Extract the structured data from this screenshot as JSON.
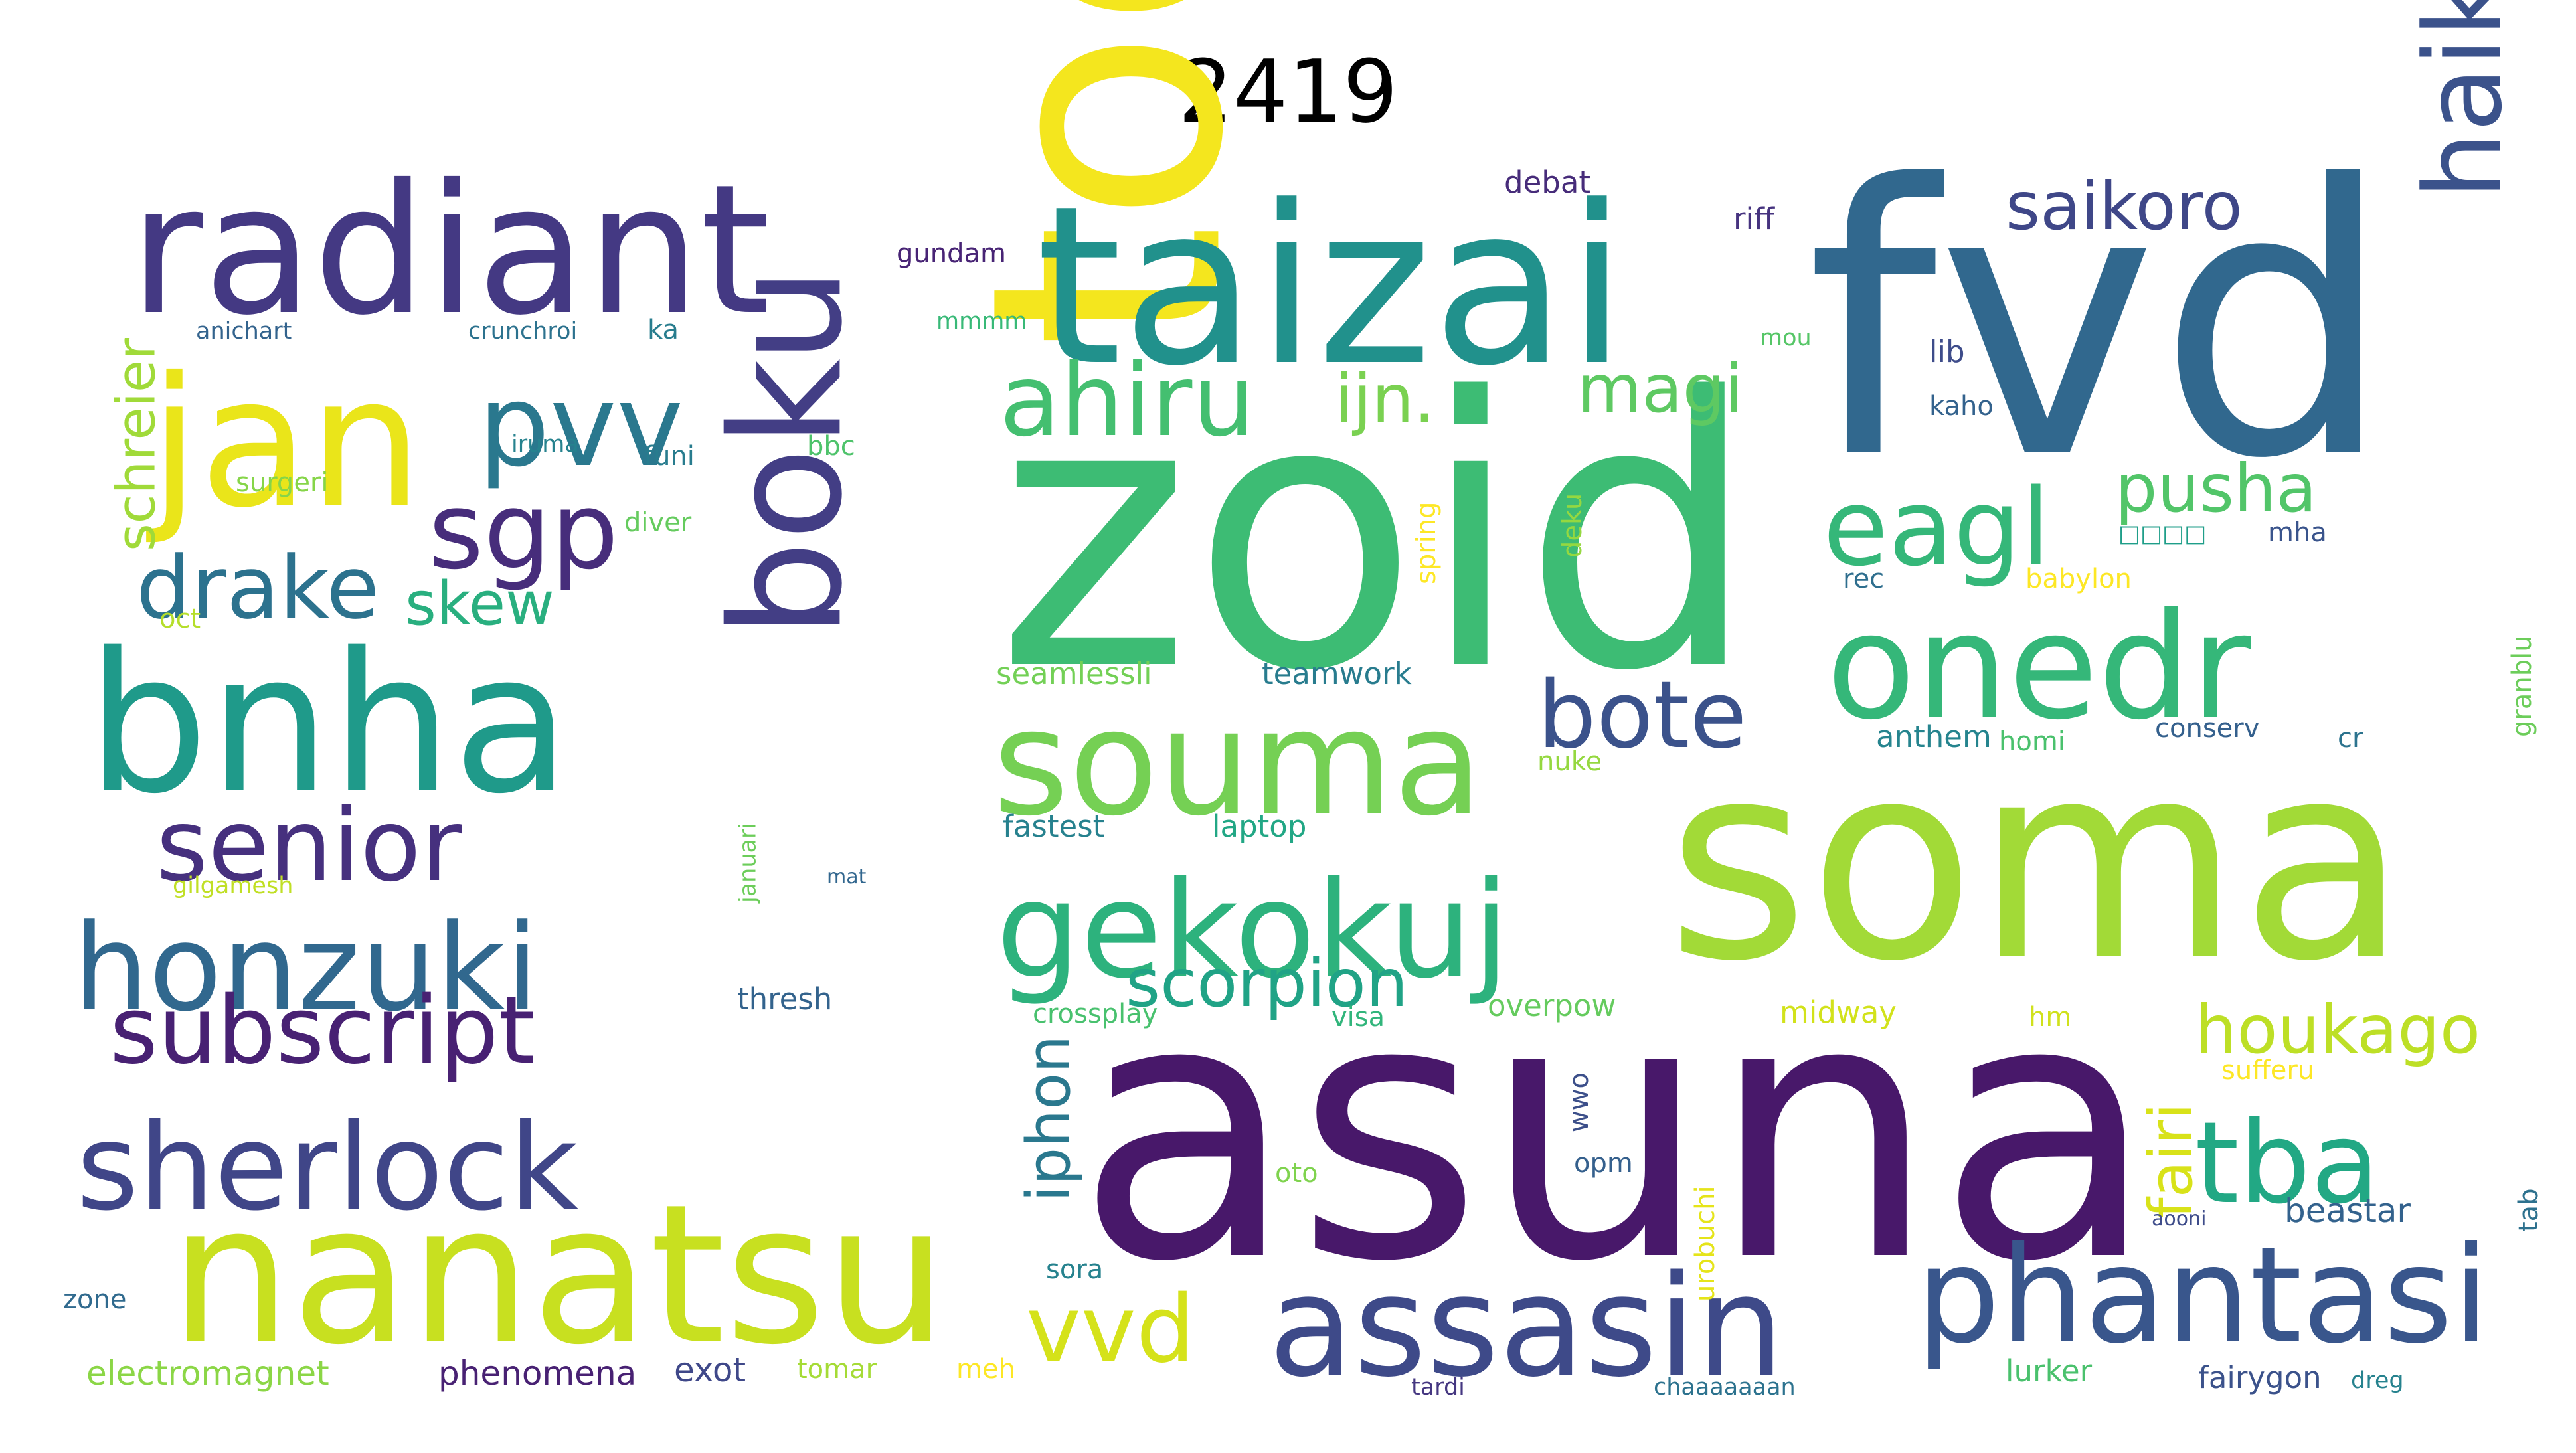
{
  "title": "2419",
  "words": [
    {
      "text": "fvd",
      "color": "#31688e"
    },
    {
      "text": "zoid",
      "color": "#3dbc74"
    },
    {
      "text": "asuna",
      "color": "#48186a"
    },
    {
      "text": "soma",
      "color": "#a2da37"
    },
    {
      "text": "todd",
      "color": "#f4e61e"
    },
    {
      "text": "taizai",
      "color": "#21918c"
    },
    {
      "text": "radiant",
      "color": "#443983"
    },
    {
      "text": "nanatsu",
      "color": "#c8e020"
    },
    {
      "text": "bnha",
      "color": "#1f9a8a"
    },
    {
      "text": "jan",
      "color": "#eae51a"
    },
    {
      "text": "boku",
      "color": "#433e85"
    },
    {
      "text": "onedr",
      "color": "#35b779"
    },
    {
      "text": "souma",
      "color": "#75d054"
    },
    {
      "text": "assasin",
      "color": "#3e4a89"
    },
    {
      "text": "phantasi",
      "color": "#39568c"
    },
    {
      "text": "gekokuj",
      "color": "#2db27d"
    },
    {
      "text": "haikyuu",
      "color": "#3b528b"
    },
    {
      "text": "honzuki",
      "color": "#31688e"
    },
    {
      "text": "sherlock",
      "color": "#404688"
    },
    {
      "text": "tba",
      "color": "#22a884"
    },
    {
      "text": "eagl",
      "color": "#35b779"
    },
    {
      "text": "ahiru",
      "color": "#44bf70"
    },
    {
      "text": "senior",
      "color": "#46307e"
    },
    {
      "text": "subscript",
      "color": "#482173"
    },
    {
      "text": "pvv",
      "color": "#2a788e"
    },
    {
      "text": "sgp",
      "color": "#472d7b"
    },
    {
      "text": "drake",
      "color": "#2c728e"
    },
    {
      "text": "bote",
      "color": "#3b528b"
    },
    {
      "text": "vvd",
      "color": "#d5e21a"
    },
    {
      "text": "scorpion",
      "color": "#20a386"
    },
    {
      "text": "houkago",
      "color": "#bddf26"
    },
    {
      "text": "magi",
      "color": "#5ec962"
    },
    {
      "text": "saikoro",
      "color": "#3f4788"
    },
    {
      "text": "ijn.",
      "color": "#7ad151"
    },
    {
      "text": "pusha",
      "color": "#52c569"
    },
    {
      "text": "skew",
      "color": "#29af7f"
    },
    {
      "text": "iphon",
      "color": "#2a788e"
    },
    {
      "text": "fairi",
      "color": "#d8e219"
    },
    {
      "text": "schreier",
      "color": "#a0da39"
    },
    {
      "text": "gundam",
      "color": "#482475"
    },
    {
      "text": "anichart",
      "color": "#33638d"
    },
    {
      "text": "crunchroi",
      "color": "#2c728e"
    },
    {
      "text": "ka",
      "color": "#287d8e"
    },
    {
      "text": "mmmm",
      "color": "#38b977"
    },
    {
      "text": "debat",
      "color": "#472c7a"
    },
    {
      "text": "riff",
      "color": "#46337f"
    },
    {
      "text": "mou",
      "color": "#56c667"
    },
    {
      "text": "lib",
      "color": "#3e4c8a"
    },
    {
      "text": "kaho",
      "color": "#33628d"
    },
    {
      "text": "iruma",
      "color": "#26828e"
    },
    {
      "text": "funi",
      "color": "#287c8e"
    },
    {
      "text": "bbc",
      "color": "#4ec36b"
    },
    {
      "text": "surgeri",
      "color": "#86d549"
    },
    {
      "text": "diver",
      "color": "#65cb5e"
    },
    {
      "text": "spring",
      "color": "#fde725"
    },
    {
      "text": "deku",
      "color": "#95d840"
    },
    {
      "text": "oct",
      "color": "#b5de2b"
    },
    {
      "text": "mha",
      "color": "#3a548c"
    },
    {
      "text": "rec",
      "color": "#2e6e8e"
    },
    {
      "text": "babylon",
      "color": "#fde725"
    },
    {
      "text": "□□□□",
      "color": "#1f9e89"
    },
    {
      "text": "seamlessli",
      "color": "#73d056"
    },
    {
      "text": "teamwork",
      "color": "#287c8e"
    },
    {
      "text": "granblu",
      "color": "#6ccd5a"
    },
    {
      "text": "anthem",
      "color": "#25848e"
    },
    {
      "text": "homi",
      "color": "#4ac16d"
    },
    {
      "text": "conserv",
      "color": "#34608d"
    },
    {
      "text": "cr",
      "color": "#2c738e"
    },
    {
      "text": "nuke",
      "color": "#95d840"
    },
    {
      "text": "januari",
      "color": "#6ccd5a"
    },
    {
      "text": "fastest",
      "color": "#26818e"
    },
    {
      "text": "laptop",
      "color": "#22a785"
    },
    {
      "text": "gilgamesh",
      "color": "#c0df25"
    },
    {
      "text": "mat",
      "color": "#31668e"
    },
    {
      "text": "thresh",
      "color": "#33638d"
    },
    {
      "text": "crossplay",
      "color": "#48c16e"
    },
    {
      "text": "visa",
      "color": "#31b57b"
    },
    {
      "text": "overpow",
      "color": "#65cb5e"
    },
    {
      "text": "midway",
      "color": "#d2e21b"
    },
    {
      "text": "hm",
      "color": "#d0e11c"
    },
    {
      "text": "sufferu",
      "color": "#fde725"
    },
    {
      "text": "urobuchi",
      "color": "#e5e419"
    },
    {
      "text": "opm",
      "color": "#35608d"
    },
    {
      "text": "wwo",
      "color": "#3c4f8a"
    },
    {
      "text": "oto",
      "color": "#7fd34e"
    },
    {
      "text": "aooni",
      "color": "#3e4c8a"
    },
    {
      "text": "beastar",
      "color": "#33628d"
    },
    {
      "text": "tab",
      "color": "#2d718e"
    },
    {
      "text": "sora",
      "color": "#26828e"
    },
    {
      "text": "zone",
      "color": "#306a8e"
    },
    {
      "text": "electromagnet",
      "color": "#8bd646"
    },
    {
      "text": "phenomena",
      "color": "#482173"
    },
    {
      "text": "exot",
      "color": "#3f4889"
    },
    {
      "text": "tomar",
      "color": "#a5db36"
    },
    {
      "text": "meh",
      "color": "#fde725"
    },
    {
      "text": "tardi",
      "color": "#453781"
    },
    {
      "text": "chaaaaaaan",
      "color": "#2c728e"
    },
    {
      "text": "lurker",
      "color": "#4ac16d"
    },
    {
      "text": "fairygon",
      "color": "#3b528b"
    },
    {
      "text": "dreg",
      "color": "#26828e"
    }
  ]
}
